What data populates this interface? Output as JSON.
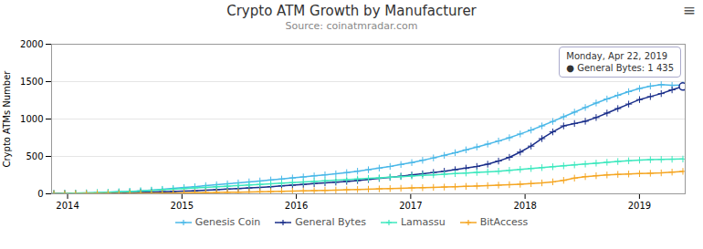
{
  "chart_data": {
    "type": "line",
    "title": "Crypto ATM Growth by Manufacturer",
    "subtitle": "Source: coinatmradar.com",
    "ylabel": "Crypto ATMs Number",
    "x": [
      2013.88,
      2013.974828,
      2014.069655,
      2014.164483,
      2014.25931,
      2014.354138,
      2014.448966,
      2014.543793,
      2014.638621,
      2014.733448,
      2014.828276,
      2014.923103,
      2015.017931,
      2015.112759,
      2015.207586,
      2015.302414,
      2015.397241,
      2015.492069,
      2015.586897,
      2015.681724,
      2015.776552,
      2015.871379,
      2015.966207,
      2016.061034,
      2016.155862,
      2016.25069,
      2016.345517,
      2016.440345,
      2016.535172,
      2016.63,
      2016.724828,
      2016.819655,
      2016.914483,
      2017.00931,
      2017.104138,
      2017.198966,
      2017.293793,
      2017.388621,
      2017.483448,
      2017.578276,
      2017.673103,
      2017.767931,
      2017.862759,
      2017.957586,
      2018.052414,
      2018.147241,
      2018.242069,
      2018.336897,
      2018.431724,
      2018.526552,
      2018.621379,
      2018.716207,
      2018.811034,
      2018.905862,
      2019.00069,
      2019.095517,
      2019.190345,
      2019.285172,
      2019.38
    ],
    "series": [
      {
        "name": "Genesis Coin",
        "color": "#4ab8e8",
        "values": [
          5,
          7,
          9,
          12,
          16,
          20,
          26,
          32,
          40,
          50,
          60,
          72,
          84,
          96,
          110,
          122,
          134,
          146,
          160,
          172,
          185,
          198,
          212,
          226,
          240,
          254,
          268,
          284,
          302,
          322,
          344,
          366,
          392,
          418,
          448,
          480,
          514,
          550,
          588,
          626,
          665,
          706,
          750,
          800,
          852,
          908,
          968,
          1030,
          1092,
          1154,
          1214,
          1268,
          1318,
          1366,
          1408,
          1440,
          1460,
          1450,
          1455
        ]
      },
      {
        "name": "General Bytes",
        "color": "#1a2e8a",
        "values": [
          2,
          3,
          4,
          5,
          7,
          9,
          12,
          15,
          19,
          23,
          27,
          31,
          36,
          41,
          48,
          55,
          63,
          70,
          78,
          86,
          96,
          106,
          116,
          126,
          136,
          146,
          156,
          166,
          178,
          192,
          206,
          220,
          236,
          252,
          268,
          285,
          302,
          322,
          344,
          366,
          396,
          438,
          488,
          558,
          638,
          738,
          828,
          908,
          940,
          970,
          1020,
          1080,
          1140,
          1200,
          1260,
          1300,
          1340,
          1390,
          1435
        ]
      },
      {
        "name": "Lamassu",
        "color": "#3de8be",
        "values": [
          4,
          6,
          9,
          12,
          16,
          20,
          26,
          32,
          38,
          46,
          54,
          62,
          70,
          78,
          86,
          94,
          102,
          110,
          118,
          126,
          134,
          142,
          150,
          158,
          166,
          174,
          182,
          190,
          198,
          206,
          214,
          222,
          230,
          238,
          246,
          254,
          262,
          270,
          278,
          286,
          294,
          302,
          314,
          326,
          338,
          350,
          362,
          374,
          386,
          398,
          410,
          422,
          432,
          442,
          450,
          456,
          460,
          462,
          465
        ]
      },
      {
        "name": "BitAccess",
        "color": "#f5a623",
        "values": [
          1,
          1,
          1,
          2,
          2,
          3,
          3,
          4,
          5,
          6,
          8,
          10,
          12,
          14,
          16,
          18,
          20,
          22,
          24,
          27,
          30,
          33,
          36,
          39,
          42,
          46,
          50,
          54,
          58,
          62,
          66,
          70,
          74,
          78,
          82,
          86,
          90,
          95,
          100,
          105,
          110,
          116,
          122,
          128,
          136,
          146,
          160,
          180,
          210,
          230,
          242,
          252,
          260,
          265,
          270,
          275,
          280,
          290,
          300
        ]
      }
    ],
    "marker": "plus",
    "xlim": [
      2013.86,
      2019.4
    ],
    "xticks": [
      2014,
      2015,
      2016,
      2017,
      2018,
      2019
    ],
    "ylim": [
      0,
      2000
    ],
    "yticks": [
      0,
      500,
      1000,
      1500,
      2000
    ],
    "grid": true,
    "legend": "bottom",
    "annotations": [
      {
        "text": "Monday, Apr 22, 2019\n● General Bytes: 1 435",
        "x": 2019.38,
        "y": 1435,
        "series": "General Bytes"
      },
      {
        "text": "≡"
      }
    ]
  }
}
